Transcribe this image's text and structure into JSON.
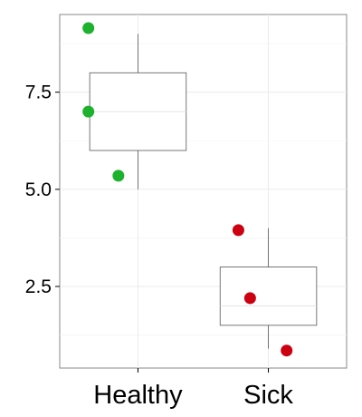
{
  "chart_data": {
    "type": "box",
    "categories": [
      "Healthy",
      "Sick"
    ],
    "ylim": [
      0.4,
      9.5
    ],
    "yticks": [
      2.5,
      5.0,
      7.5
    ],
    "ytick_labels": [
      "2.5",
      "5.0",
      "7.5"
    ],
    "grid": true,
    "boxes": [
      {
        "category": "Healthy",
        "whisker_low": 5.0,
        "q1": 6.0,
        "median": 7.0,
        "q3": 8.0,
        "whisker_high": 9.0
      },
      {
        "category": "Sick",
        "whisker_low": 0.9,
        "q1": 1.5,
        "median": 2.0,
        "q3": 3.0,
        "whisker_high": 4.0
      }
    ],
    "points": [
      {
        "category": "Healthy",
        "x_offset": -0.38,
        "y": 9.15,
        "color": "#1db12d"
      },
      {
        "category": "Healthy",
        "x_offset": -0.38,
        "y": 7.0,
        "color": "#1db12d"
      },
      {
        "category": "Healthy",
        "x_offset": -0.15,
        "y": 5.35,
        "color": "#1db12d"
      },
      {
        "category": "Sick",
        "x_offset": -0.23,
        "y": 3.95,
        "color": "#cc0010"
      },
      {
        "category": "Sick",
        "x_offset": -0.14,
        "y": 2.2,
        "color": "#cc0010"
      },
      {
        "category": "Sick",
        "x_offset": 0.14,
        "y": 0.85,
        "color": "#cc0010"
      }
    ],
    "colors": {
      "healthy": "#1db12d",
      "sick": "#cc0010"
    }
  }
}
